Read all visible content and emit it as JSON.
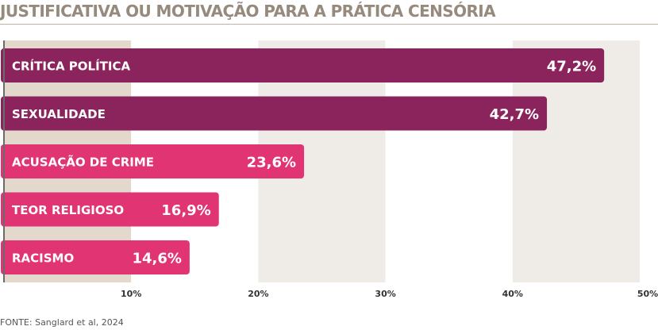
{
  "title": "JUSTIFICATIVA OU MOTIVAÇÃO PARA A PRÁTICA CENSÓRIA",
  "source": "FONTE: Sanglard et al, 2024",
  "colors": {
    "title": "#968a7d",
    "band_dark": "#e2d8cc",
    "band_light": "#efebe6",
    "bar_primary": "#8b245c",
    "bar_secondary": "#e03473",
    "axis": "#6b6b6b"
  },
  "chart_data": {
    "type": "bar",
    "orientation": "horizontal",
    "title": "JUSTIFICATIVA OU MOTIVAÇÃO PARA A PRÁTICA CENSÓRIA",
    "categories": [
      "CRÍTICA POLÍTICA",
      "SEXUALIDADE",
      "ACUSAÇÃO DE CRIME",
      "TEOR RELIGIOSO",
      "RACISMO"
    ],
    "values": [
      47.2,
      42.7,
      23.6,
      16.9,
      14.6
    ],
    "value_labels": [
      "47,2%",
      "42,7%",
      "23,6%",
      "16,9%",
      "14,6%"
    ],
    "bar_color_keys": [
      "bar_primary",
      "bar_primary",
      "bar_secondary",
      "bar_secondary",
      "bar_secondary"
    ],
    "ticks": [
      10,
      20,
      30,
      40,
      50
    ],
    "tick_labels": [
      "10%",
      "20%",
      "30%",
      "40%",
      "50%"
    ],
    "xlim": [
      0,
      50
    ],
    "xlabel": "",
    "ylabel": "",
    "grid": "alternating vertical bands"
  }
}
